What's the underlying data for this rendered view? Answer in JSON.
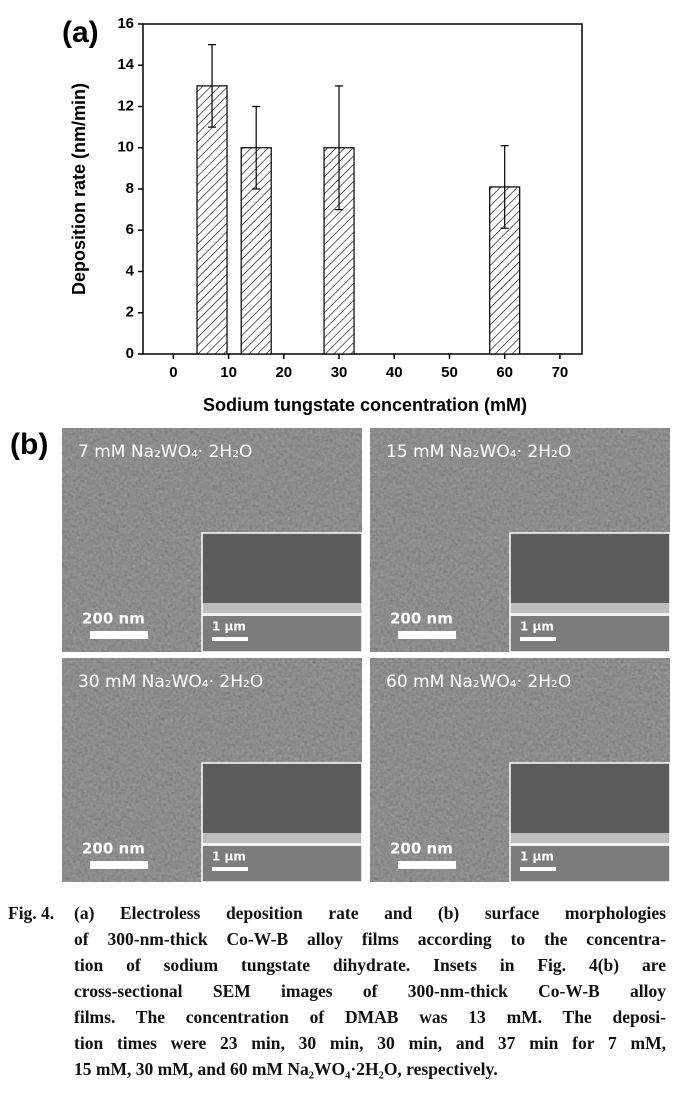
{
  "chart_data": {
    "type": "bar",
    "panel_label": "(a)",
    "x_label": "Sodium tungstate concentration (mM)",
    "y_label": "Deposition rate (nm/min)",
    "x": [
      7,
      15,
      30,
      60
    ],
    "values": [
      13,
      10,
      10,
      8.1
    ],
    "errors": [
      2,
      2,
      3,
      2
    ],
    "color": "#000000",
    "hatch": "diagonal",
    "xlim": [
      -5.5,
      74
    ],
    "xticks": [
      0,
      10,
      20,
      30,
      40,
      50,
      60,
      70
    ],
    "ylim": [
      0,
      16
    ],
    "yticks": [
      0,
      2,
      4,
      6,
      8,
      10,
      12,
      14,
      16
    ]
  },
  "panel_b": {
    "label": "(b)",
    "images": [
      {
        "label": "7 mM Na₂WO₄· 2H₂O",
        "scale": "200 nm",
        "inset_scale": "1 μm"
      },
      {
        "label": "15 mM Na₂WO₄· 2H₂O",
        "scale": "200 nm",
        "inset_scale": "1 μm"
      },
      {
        "label": "30 mM Na₂WO₄· 2H₂O",
        "scale": "200 nm",
        "inset_scale": "1 μm"
      },
      {
        "label": "60 mM Na₂WO₄· 2H₂O",
        "scale": "200 nm",
        "inset_scale": "1 μm"
      }
    ]
  },
  "caption": {
    "label": "Fig. 4.",
    "lines": [
      "(a) Electroless deposition rate and (b) surface morphologies",
      "of 300-nm-thick Co-W-B alloy films according to the concentra-",
      "tion of sodium tungstate dihydrate. Insets in Fig. 4(b) are",
      "cross-sectional SEM images of 300-nm-thick Co-W-B alloy",
      "films. The concentration of DMAB was 13 mM. The deposi-",
      "tion times were 23 min, 30 min, 30 min, and 37 min for 7 mM,",
      "15 mM, 30 mM, and 60 mM Na₂WO₄·2H₂O, respectively."
    ]
  }
}
